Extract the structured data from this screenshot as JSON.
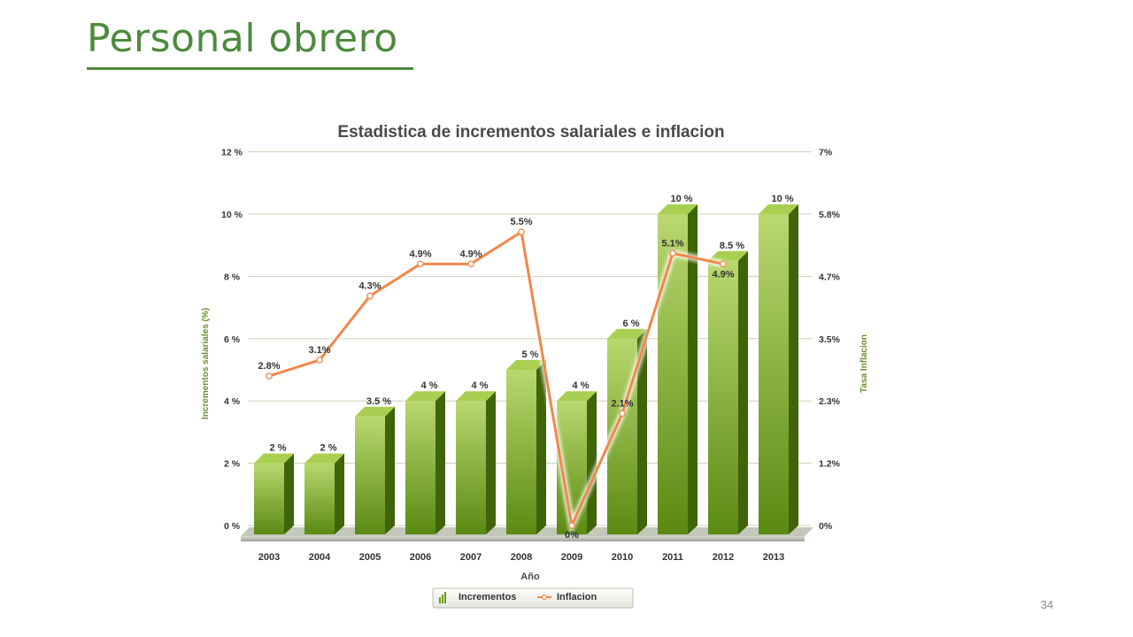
{
  "slide": {
    "title": "Personal obrero",
    "page_number": "34"
  },
  "colors": {
    "title": "#4e8a3e",
    "bar_front_light": "#b9d86f",
    "bar_front_dark": "#5a8a12",
    "bar_side": "#3f6409",
    "bar_top": "#a9cf52",
    "line": "#f0884a",
    "grid": "#c8d0b4"
  },
  "chart_data": {
    "type": "bar",
    "title": "Estadistica de incrementos salariales e inflacion",
    "xlabel": "Año",
    "ylabel": "Incrementos salariales (%)",
    "y2label": "Tasa Inflacion",
    "categories": [
      "2003",
      "2004",
      "2005",
      "2006",
      "2007",
      "2008",
      "2009",
      "2010",
      "2011",
      "2012",
      "2013"
    ],
    "ylim": [
      0,
      12
    ],
    "y_ticks": [
      "0 %",
      "2 %",
      "4 %",
      "6 %",
      "8 %",
      "10 %",
      "12 %"
    ],
    "y2_ticks": [
      "0%",
      "1.2%",
      "2.3%",
      "3.5%",
      "4.7%",
      "5.8%",
      "7%"
    ],
    "grid": true,
    "legend_position": "bottom-center",
    "series": [
      {
        "name": "Incrementos",
        "type": "bar",
        "values": [
          2,
          2,
          3.5,
          4,
          4,
          5,
          4,
          6,
          10,
          8.5,
          10
        ],
        "labels": [
          "2 %",
          "2 %",
          "3.5 %",
          "4 %",
          "4 %",
          "5 %",
          "4 %",
          "6 %",
          "10 %",
          "8.5 %",
          "10 %"
        ]
      },
      {
        "name": "Inflacion",
        "type": "line",
        "axis": "right",
        "values": [
          2.8,
          3.1,
          4.3,
          4.9,
          4.9,
          5.5,
          0,
          2.1,
          5.1,
          4.9,
          null
        ],
        "labels": [
          "2.8%",
          "3.1%",
          "4.3%",
          "4.9%",
          "4.9%",
          "5.5%",
          "0%",
          "2.1%",
          "5.1%",
          "4.9%",
          ""
        ]
      }
    ]
  }
}
